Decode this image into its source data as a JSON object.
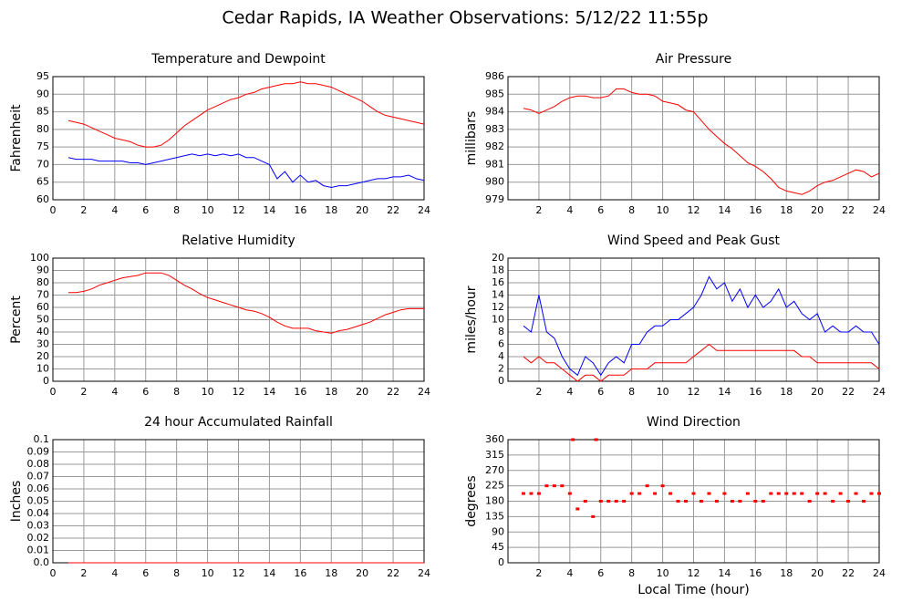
{
  "title": "Cedar Rapids, IA Weather Observations: 5/12/22 11:55p",
  "chart_data": [
    {
      "type": "line",
      "title": "Temperature and Dewpoint",
      "ylabel": "Fahrenheit",
      "xlim": [
        0,
        24
      ],
      "xticks": [
        0,
        2,
        4,
        6,
        8,
        10,
        12,
        14,
        16,
        18,
        20,
        22,
        24
      ],
      "ylim": [
        60,
        95
      ],
      "yticks": [
        60,
        65,
        70,
        75,
        80,
        85,
        90,
        95
      ],
      "grid": true,
      "x": [
        1,
        1.5,
        2,
        2.5,
        3,
        3.5,
        4,
        4.5,
        5,
        5.5,
        6,
        6.5,
        7,
        7.5,
        8,
        8.5,
        9,
        9.5,
        10,
        10.5,
        11,
        11.5,
        12,
        12.5,
        13,
        13.5,
        14,
        14.5,
        15,
        15.5,
        16,
        16.5,
        17,
        17.5,
        18,
        18.5,
        19,
        19.5,
        20,
        20.5,
        21,
        21.5,
        22,
        22.5,
        23,
        23.5,
        24
      ],
      "series": [
        {
          "color": "#ff0000",
          "values": [
            82.5,
            82,
            81.5,
            80.5,
            79.5,
            78.5,
            77.5,
            77,
            76.5,
            75.5,
            75,
            75,
            75.5,
            77,
            79,
            81,
            82.5,
            84,
            85.5,
            86.5,
            87.5,
            88.5,
            89,
            90,
            90.5,
            91.5,
            92,
            92.5,
            93,
            93,
            93.5,
            93,
            93,
            92.5,
            92,
            91,
            90,
            89,
            88,
            86.5,
            85,
            84,
            83.5,
            83,
            82.5,
            82,
            81.5
          ]
        },
        {
          "color": "#0000ff",
          "values": [
            72,
            71.5,
            71.5,
            71.5,
            71,
            71,
            71,
            71,
            70.5,
            70.5,
            70,
            70.5,
            71,
            71.5,
            72,
            72.5,
            73,
            72.5,
            73,
            72.5,
            73,
            72.5,
            73,
            72,
            72,
            71,
            70,
            66,
            68,
            65,
            67,
            65,
            65.5,
            64,
            63.5,
            64,
            64,
            64.5,
            65,
            65.5,
            66,
            66,
            66.5,
            66.5,
            67,
            66,
            65.5
          ]
        }
      ]
    },
    {
      "type": "line",
      "title": "Air Pressure",
      "ylabel": "millibars",
      "xlim": [
        0,
        24
      ],
      "xticks": [
        2,
        4,
        6,
        8,
        10,
        12,
        14,
        16,
        18,
        20,
        22,
        24
      ],
      "ylim": [
        979,
        986
      ],
      "yticks": [
        979,
        980,
        981,
        982,
        983,
        984,
        985,
        986
      ],
      "grid": true,
      "x": [
        1,
        1.5,
        2,
        2.5,
        3,
        3.5,
        4,
        4.5,
        5,
        5.5,
        6,
        6.5,
        7,
        7.5,
        8,
        8.5,
        9,
        9.5,
        10,
        10.5,
        11,
        11.5,
        12,
        12.5,
        13,
        13.5,
        14,
        14.5,
        15,
        15.5,
        16,
        16.5,
        17,
        17.5,
        18,
        18.5,
        19,
        19.5,
        20,
        20.5,
        21,
        21.5,
        22,
        22.5,
        23,
        23.5,
        24
      ],
      "series": [
        {
          "color": "#ff0000",
          "values": [
            984.2,
            984.1,
            983.9,
            984.1,
            984.3,
            984.6,
            984.8,
            984.9,
            984.9,
            984.8,
            984.8,
            984.9,
            985.3,
            985.3,
            985.1,
            985,
            985,
            984.9,
            984.6,
            984.5,
            984.4,
            984.1,
            984,
            983.5,
            983,
            982.6,
            982.2,
            981.9,
            981.5,
            981.1,
            980.9,
            980.6,
            980.2,
            979.7,
            979.5,
            979.4,
            979.3,
            979.5,
            979.8,
            980,
            980.1,
            980.3,
            980.5,
            980.7,
            980.6,
            980.3,
            980.5
          ]
        }
      ]
    },
    {
      "type": "line",
      "title": "Relative Humidity",
      "ylabel": "Percent",
      "xlim": [
        0,
        24
      ],
      "xticks": [
        0,
        2,
        4,
        6,
        8,
        10,
        12,
        14,
        16,
        18,
        20,
        22,
        24
      ],
      "ylim": [
        0,
        100
      ],
      "yticks": [
        0,
        10,
        20,
        30,
        40,
        50,
        60,
        70,
        80,
        90,
        100
      ],
      "grid": true,
      "x": [
        1,
        1.5,
        2,
        2.5,
        3,
        3.5,
        4,
        4.5,
        5,
        5.5,
        6,
        6.5,
        7,
        7.5,
        8,
        8.5,
        9,
        9.5,
        10,
        10.5,
        11,
        11.5,
        12,
        12.5,
        13,
        13.5,
        14,
        14.5,
        15,
        15.5,
        16,
        16.5,
        17,
        17.5,
        18,
        18.5,
        19,
        19.5,
        20,
        20.5,
        21,
        21.5,
        22,
        22.5,
        23,
        23.5,
        24
      ],
      "series": [
        {
          "color": "#ff0000",
          "values": [
            72,
            72,
            73,
            75,
            78,
            80,
            82,
            84,
            85,
            86,
            88,
            88,
            88,
            86,
            82,
            78,
            75,
            71,
            68,
            66,
            64,
            62,
            60,
            58,
            57,
            55,
            52,
            48,
            45,
            43,
            43,
            43,
            41,
            40,
            39,
            41,
            42,
            44,
            46,
            48,
            51,
            54,
            56,
            58,
            59,
            59,
            59
          ]
        }
      ]
    },
    {
      "type": "line",
      "title": "Wind Speed and Peak Gust",
      "ylabel": "miles/hour",
      "xlim": [
        0,
        24
      ],
      "xticks": [
        2,
        4,
        6,
        8,
        10,
        12,
        14,
        16,
        18,
        20,
        22,
        24
      ],
      "ylim": [
        0,
        20
      ],
      "yticks": [
        0,
        2,
        4,
        6,
        8,
        10,
        12,
        14,
        16,
        18,
        20
      ],
      "grid": true,
      "x": [
        1,
        1.5,
        2,
        2.5,
        3,
        3.5,
        4,
        4.5,
        5,
        5.5,
        6,
        6.5,
        7,
        7.5,
        8,
        8.5,
        9,
        9.5,
        10,
        10.5,
        11,
        11.5,
        12,
        12.5,
        13,
        13.5,
        14,
        14.5,
        15,
        15.5,
        16,
        16.5,
        17,
        17.5,
        18,
        18.5,
        19,
        19.5,
        20,
        20.5,
        21,
        21.5,
        22,
        22.5,
        23,
        23.5,
        24
      ],
      "series": [
        {
          "color": "#0000ff",
          "values": [
            9,
            8,
            14,
            8,
            7,
            4,
            2,
            1,
            4,
            3,
            1,
            3,
            4,
            3,
            6,
            6,
            8,
            9,
            9,
            10,
            10,
            11,
            12,
            14,
            17,
            15,
            16,
            13,
            15,
            12,
            14,
            12,
            13,
            15,
            12,
            13,
            11,
            10,
            11,
            8,
            9,
            8,
            8,
            9,
            8,
            8,
            6
          ]
        },
        {
          "color": "#ff0000",
          "values": [
            4,
            3,
            4,
            3,
            3,
            2,
            1,
            0,
            1,
            1,
            0,
            1,
            1,
            1,
            2,
            2,
            2,
            3,
            3,
            3,
            3,
            3,
            4,
            5,
            6,
            5,
            5,
            5,
            5,
            5,
            5,
            5,
            5,
            5,
            5,
            5,
            4,
            4,
            3,
            3,
            3,
            3,
            3,
            3,
            3,
            3,
            2
          ]
        }
      ]
    },
    {
      "type": "line",
      "title": "24 hour Accumulated Rainfall",
      "ylabel": "Inches",
      "xlim": [
        0,
        24
      ],
      "xticks": [
        0,
        2,
        4,
        6,
        8,
        10,
        12,
        14,
        16,
        18,
        20,
        22,
        24
      ],
      "ylim": [
        0,
        0.1
      ],
      "yticks": [
        {
          "value": 0,
          "label": "0.0"
        },
        0.01,
        0.02,
        0.03,
        0.04,
        0.05,
        0.06,
        0.07,
        0.08,
        0.09,
        0.1
      ],
      "grid": true,
      "x": [
        1,
        24
      ],
      "series": [
        {
          "color": "#ff0000",
          "values": [
            0,
            0
          ]
        }
      ]
    },
    {
      "type": "scatter",
      "title": "Wind Direction",
      "ylabel": "degrees",
      "xlabel": "Local Time (hour)",
      "xlim": [
        0,
        24
      ],
      "xticks": [
        2,
        4,
        6,
        8,
        10,
        12,
        14,
        16,
        18,
        20,
        22,
        24
      ],
      "ylim": [
        0,
        360
      ],
      "yticks": [
        0,
        45,
        90,
        135,
        180,
        225,
        270,
        315,
        360
      ],
      "grid": true,
      "x": [
        1,
        1.5,
        2,
        2.5,
        3,
        3.5,
        4,
        4.5,
        5,
        5.5,
        6,
        6.5,
        7,
        7.5,
        8,
        8.5,
        9,
        9.5,
        10,
        10.5,
        11,
        11.5,
        12,
        12.5,
        13,
        13.5,
        14,
        14.5,
        15,
        15.5,
        16,
        16.5,
        17,
        17.5,
        18,
        18.5,
        19,
        19.5,
        20,
        20.5,
        21,
        21.5,
        22,
        22.5,
        23,
        23.5,
        24,
        4.2,
        5.7
      ],
      "series": [
        {
          "color": "#ff0000",
          "values": [
            202.5,
            202.5,
            202.5,
            225,
            225,
            225,
            202.5,
            157.5,
            180,
            135,
            180,
            180,
            180,
            180,
            202.5,
            202.5,
            225,
            202.5,
            225,
            202.5,
            180,
            180,
            202.5,
            180,
            202.5,
            180,
            202.5,
            180,
            180,
            202.5,
            180,
            180,
            202.5,
            202.5,
            202.5,
            202.5,
            202.5,
            180,
            202.5,
            202.5,
            180,
            202.5,
            180,
            202.5,
            180,
            202.5,
            202.5,
            360,
            360
          ]
        }
      ]
    }
  ]
}
